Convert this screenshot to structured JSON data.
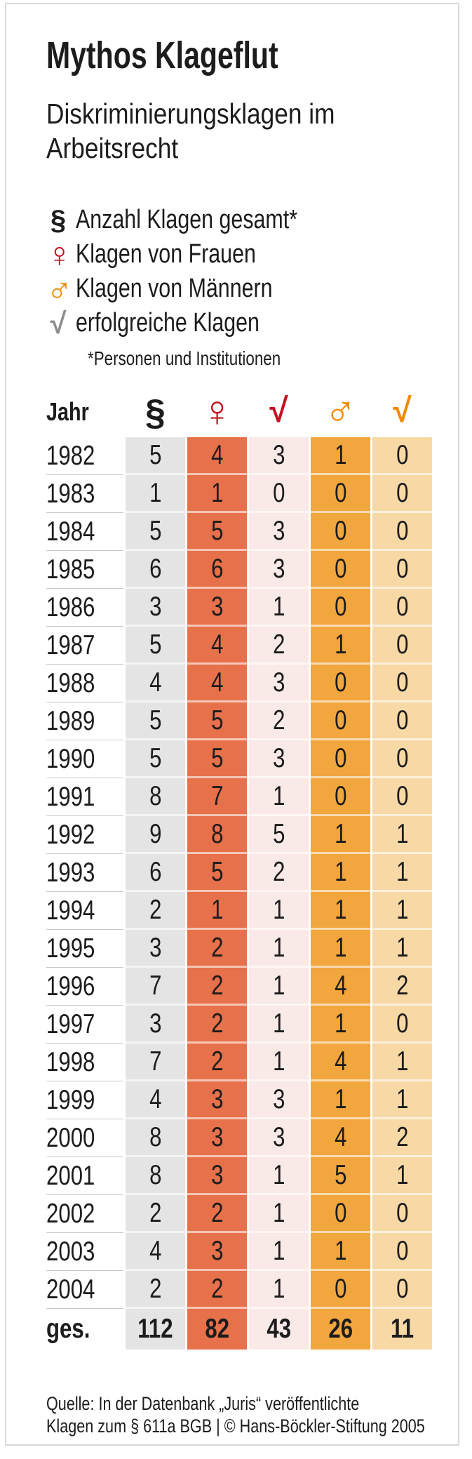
{
  "title": "Mythos Klageflut",
  "subtitle": "Diskriminierungsklagen im Arbeitsrecht",
  "colors": {
    "text": "#1c1c1c",
    "red": "#c51322",
    "orange": "#f18a00",
    "check_gray": "#8e8e8e",
    "card_border": "#d9d9d9",
    "row_divider": "#c9c9c9"
  },
  "legend": {
    "items": [
      {
        "icon": "paragraph-icon",
        "glyph": "§",
        "color": "#1c1c1c",
        "label": "Anzahl Klagen gesamt*"
      },
      {
        "icon": "female-icon",
        "glyph": "♀",
        "color": "#c51322",
        "label": "Klagen von Frauen"
      },
      {
        "icon": "male-icon",
        "glyph": "♂",
        "color": "#f18a00",
        "label": "Klagen von Männern"
      },
      {
        "icon": "check-icon",
        "glyph": "√",
        "color": "#8e8e8e",
        "label": "erfolgreiche Klagen"
      }
    ],
    "footnote": "*Personen und Institutionen"
  },
  "chart_data": {
    "type": "table",
    "title": "Mythos Klageflut",
    "subtitle": "Diskriminierungsklagen im Arbeitsrecht",
    "columns": [
      "Jahr",
      "Anzahl Klagen gesamt",
      "Klagen von Frauen",
      "erfolgreiche Klagen (Frauen)",
      "Klagen von Männern",
      "erfolgreiche Klagen (Männer)"
    ],
    "rows": [
      [
        "1982",
        5,
        4,
        3,
        1,
        0
      ],
      [
        "1983",
        1,
        1,
        0,
        0,
        0
      ],
      [
        "1984",
        5,
        5,
        3,
        0,
        0
      ],
      [
        "1985",
        6,
        6,
        3,
        0,
        0
      ],
      [
        "1986",
        3,
        3,
        1,
        0,
        0
      ],
      [
        "1987",
        5,
        4,
        2,
        1,
        0
      ],
      [
        "1988",
        4,
        4,
        3,
        0,
        0
      ],
      [
        "1989",
        5,
        5,
        2,
        0,
        0
      ],
      [
        "1990",
        5,
        5,
        3,
        0,
        0
      ],
      [
        "1991",
        8,
        7,
        1,
        0,
        0
      ],
      [
        "1992",
        9,
        8,
        5,
        1,
        1
      ],
      [
        "1993",
        6,
        5,
        2,
        1,
        1
      ],
      [
        "1994",
        2,
        1,
        1,
        1,
        1
      ],
      [
        "1995",
        3,
        2,
        1,
        1,
        1
      ],
      [
        "1996",
        7,
        2,
        1,
        4,
        2
      ],
      [
        "1997",
        3,
        2,
        1,
        1,
        0
      ],
      [
        "1998",
        7,
        2,
        1,
        4,
        1
      ],
      [
        "1999",
        4,
        3,
        3,
        1,
        1
      ],
      [
        "2000",
        8,
        3,
        3,
        4,
        2
      ],
      [
        "2001",
        8,
        3,
        1,
        5,
        1
      ],
      [
        "2002",
        2,
        2,
        1,
        0,
        0
      ],
      [
        "2003",
        4,
        3,
        1,
        1,
        0
      ],
      [
        "2004",
        2,
        2,
        1,
        0,
        0
      ],
      [
        "ges.",
        112,
        82,
        43,
        26,
        11
      ]
    ]
  },
  "table": {
    "year_header": "Jahr",
    "columns": [
      {
        "icon": "paragraph-icon",
        "glyph": "§",
        "icon_color": "#1c1c1c",
        "cell_color": "#e4e4e4"
      },
      {
        "icon": "female-icon",
        "glyph": "♀",
        "icon_color": "#c51322",
        "cell_color": "#e7714a"
      },
      {
        "icon": "check-icon",
        "glyph": "√",
        "icon_color": "#c51322",
        "cell_color": "#faeae7"
      },
      {
        "icon": "male-icon",
        "glyph": "♂",
        "icon_color": "#f18a00",
        "cell_color": "#f1a63e"
      },
      {
        "icon": "check-icon",
        "glyph": "√",
        "icon_color": "#f18a00",
        "cell_color": "#f8d9a6"
      }
    ],
    "rows": [
      {
        "year": "1982",
        "values": [
          5,
          4,
          3,
          1,
          0
        ]
      },
      {
        "year": "1983",
        "values": [
          1,
          1,
          0,
          0,
          0
        ]
      },
      {
        "year": "1984",
        "values": [
          5,
          5,
          3,
          0,
          0
        ]
      },
      {
        "year": "1985",
        "values": [
          6,
          6,
          3,
          0,
          0
        ]
      },
      {
        "year": "1986",
        "values": [
          3,
          3,
          1,
          0,
          0
        ]
      },
      {
        "year": "1987",
        "values": [
          5,
          4,
          2,
          1,
          0
        ]
      },
      {
        "year": "1988",
        "values": [
          4,
          4,
          3,
          0,
          0
        ]
      },
      {
        "year": "1989",
        "values": [
          5,
          5,
          2,
          0,
          0
        ]
      },
      {
        "year": "1990",
        "values": [
          5,
          5,
          3,
          0,
          0
        ]
      },
      {
        "year": "1991",
        "values": [
          8,
          7,
          1,
          0,
          0
        ]
      },
      {
        "year": "1992",
        "values": [
          9,
          8,
          5,
          1,
          1
        ]
      },
      {
        "year": "1993",
        "values": [
          6,
          5,
          2,
          1,
          1
        ]
      },
      {
        "year": "1994",
        "values": [
          2,
          1,
          1,
          1,
          1
        ]
      },
      {
        "year": "1995",
        "values": [
          3,
          2,
          1,
          1,
          1
        ]
      },
      {
        "year": "1996",
        "values": [
          7,
          2,
          1,
          4,
          2
        ]
      },
      {
        "year": "1997",
        "values": [
          3,
          2,
          1,
          1,
          0
        ]
      },
      {
        "year": "1998",
        "values": [
          7,
          2,
          1,
          4,
          1
        ]
      },
      {
        "year": "1999",
        "values": [
          4,
          3,
          3,
          1,
          1
        ]
      },
      {
        "year": "2000",
        "values": [
          8,
          3,
          3,
          4,
          2
        ]
      },
      {
        "year": "2001",
        "values": [
          8,
          3,
          1,
          5,
          1
        ]
      },
      {
        "year": "2002",
        "values": [
          2,
          2,
          1,
          0,
          0
        ]
      },
      {
        "year": "2003",
        "values": [
          4,
          3,
          1,
          1,
          0
        ]
      },
      {
        "year": "2004",
        "values": [
          2,
          2,
          1,
          0,
          0
        ]
      }
    ],
    "total": {
      "label": "ges.",
      "values": [
        112,
        82,
        43,
        26,
        11
      ]
    }
  },
  "source": {
    "line1": "Quelle: In der Datenbank „Juris“ veröffentlichte",
    "line2": "Klagen zum § 611a BGB | © Hans-Böckler-Stiftung 2005"
  }
}
